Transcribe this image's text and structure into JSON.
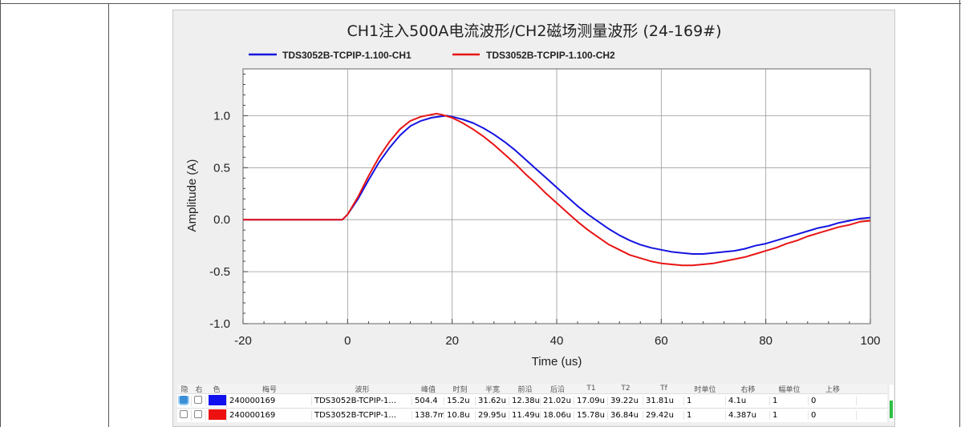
{
  "chart_data": {
    "type": "line",
    "title": "CH1注入500A电流波形/CH2磁场测量波形 (24-169#)",
    "xlabel": "Time (us)",
    "ylabel": "Amplitude (A)",
    "xlim": [
      -20,
      100
    ],
    "ylim": [
      -1.0,
      1.45
    ],
    "xticks": [
      -20,
      0,
      20,
      40,
      60,
      80,
      100
    ],
    "xtick_labels": [
      "-20",
      "0",
      "20",
      "40",
      "60",
      "80",
      "100"
    ],
    "yticks": [
      -1.0,
      -0.5,
      0.0,
      0.5,
      1.0
    ],
    "ytick_labels": [
      "-1.0",
      "-0.5",
      "0.0",
      "0.5",
      "1.0"
    ],
    "grid": true,
    "legend_position": "top",
    "series": [
      {
        "name": "TDS3052B-TCPIP-1.100-CH1",
        "color": "#1414e0",
        "x": [
          -20,
          -1,
          0,
          2,
          4,
          6,
          8,
          10,
          12,
          14,
          16,
          18,
          19,
          20,
          22,
          24,
          26,
          28,
          30,
          32,
          34,
          36,
          38,
          40,
          42,
          44,
          46,
          48,
          50,
          52,
          54,
          56,
          58,
          60,
          62,
          64,
          66,
          68,
          70,
          72,
          74,
          76,
          78,
          80,
          82,
          84,
          86,
          88,
          90,
          92,
          94,
          96,
          98,
          100
        ],
        "y": [
          0.0,
          0.0,
          0.05,
          0.2,
          0.38,
          0.55,
          0.69,
          0.81,
          0.9,
          0.95,
          0.98,
          0.995,
          1.0,
          0.99,
          0.965,
          0.93,
          0.88,
          0.82,
          0.75,
          0.67,
          0.58,
          0.49,
          0.4,
          0.31,
          0.22,
          0.13,
          0.05,
          -0.02,
          -0.09,
          -0.15,
          -0.2,
          -0.24,
          -0.27,
          -0.29,
          -0.31,
          -0.32,
          -0.33,
          -0.33,
          -0.32,
          -0.31,
          -0.3,
          -0.28,
          -0.25,
          -0.23,
          -0.2,
          -0.17,
          -0.14,
          -0.11,
          -0.08,
          -0.06,
          -0.03,
          -0.01,
          0.01,
          0.02
        ]
      },
      {
        "name": "TDS3052B-TCPIP-1.100-CH2",
        "color": "#e81414",
        "x": [
          -20,
          -1,
          0,
          2,
          4,
          6,
          8,
          10,
          12,
          14,
          16,
          17,
          18,
          20,
          22,
          24,
          26,
          28,
          30,
          32,
          34,
          36,
          38,
          40,
          42,
          44,
          46,
          48,
          50,
          52,
          54,
          56,
          58,
          60,
          62,
          64,
          66,
          68,
          70,
          72,
          74,
          76,
          78,
          80,
          82,
          84,
          86,
          88,
          90,
          92,
          94,
          96,
          98,
          100
        ],
        "y": [
          0.0,
          0.0,
          0.05,
          0.22,
          0.42,
          0.6,
          0.75,
          0.87,
          0.95,
          0.99,
          1.01,
          1.02,
          1.01,
          0.98,
          0.93,
          0.87,
          0.8,
          0.72,
          0.63,
          0.54,
          0.44,
          0.35,
          0.25,
          0.16,
          0.07,
          -0.02,
          -0.1,
          -0.17,
          -0.24,
          -0.29,
          -0.34,
          -0.37,
          -0.4,
          -0.42,
          -0.43,
          -0.44,
          -0.44,
          -0.43,
          -0.42,
          -0.4,
          -0.38,
          -0.36,
          -0.33,
          -0.3,
          -0.27,
          -0.23,
          -0.2,
          -0.16,
          -0.13,
          -0.1,
          -0.07,
          -0.05,
          -0.02,
          -0.01
        ]
      }
    ]
  },
  "table": {
    "headers": [
      "隐",
      "右",
      "色",
      "梅号",
      "波形",
      "峰值",
      "时刻",
      "半宽",
      "前沿",
      "后沿",
      "T1",
      "T2",
      "Tf",
      "时单位",
      "右移",
      "幅单位",
      "上移"
    ],
    "rows": [
      {
        "hide_checked": true,
        "right_checked": false,
        "color": "#1111ee",
        "cells": [
          "240000169",
          "TDS3052B-TCPIP-1...",
          "504.4",
          "15.2u",
          "31.62u",
          "12.38u",
          "21.02u",
          "17.09u",
          "39.22u",
          "31.81u",
          "1",
          "4.1u",
          "1",
          "0"
        ]
      },
      {
        "hide_checked": false,
        "right_checked": false,
        "color": "#ee1111",
        "cells": [
          "240000169",
          "TDS3052B-TCPIP-1...",
          "138.7m",
          "10.8u",
          "29.95u",
          "11.49u",
          "18.06u",
          "15.78u",
          "36.84u",
          "29.42u",
          "1",
          "4.387u",
          "1",
          "0"
        ]
      }
    ]
  }
}
